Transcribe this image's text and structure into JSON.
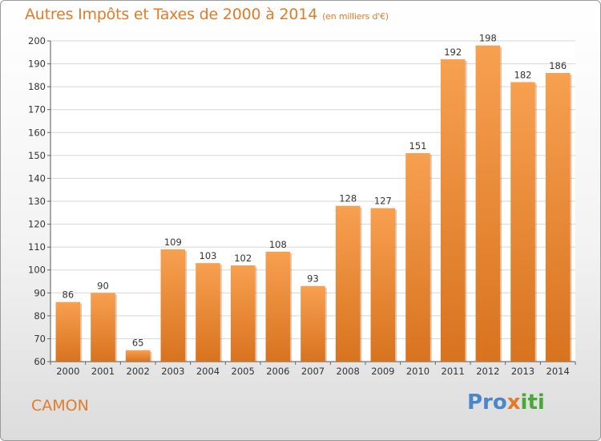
{
  "chart_data": {
    "type": "bar",
    "title": "Autres Impôts et Taxes de 2000 à 2014",
    "unit": "(en milliers d'€)",
    "categories": [
      "2000",
      "2001",
      "2002",
      "2003",
      "2004",
      "2005",
      "2006",
      "2007",
      "2008",
      "2009",
      "2010",
      "2011",
      "2012",
      "2013",
      "2014"
    ],
    "values": [
      86,
      90,
      65,
      109,
      103,
      102,
      108,
      93,
      128,
      127,
      151,
      192,
      198,
      182,
      186
    ],
    "ylim": [
      60,
      200
    ],
    "yticks": [
      60,
      70,
      80,
      90,
      100,
      110,
      120,
      130,
      140,
      150,
      160,
      170,
      180,
      190,
      200
    ],
    "grid": true,
    "bar_color": "#f0903a",
    "accent_color": "#e07b2c"
  },
  "place_name": "CAMON",
  "logo": {
    "text": "Proxiti",
    "colors": [
      "#4a86c8",
      "#e07b2c",
      "#4aa83a"
    ]
  }
}
